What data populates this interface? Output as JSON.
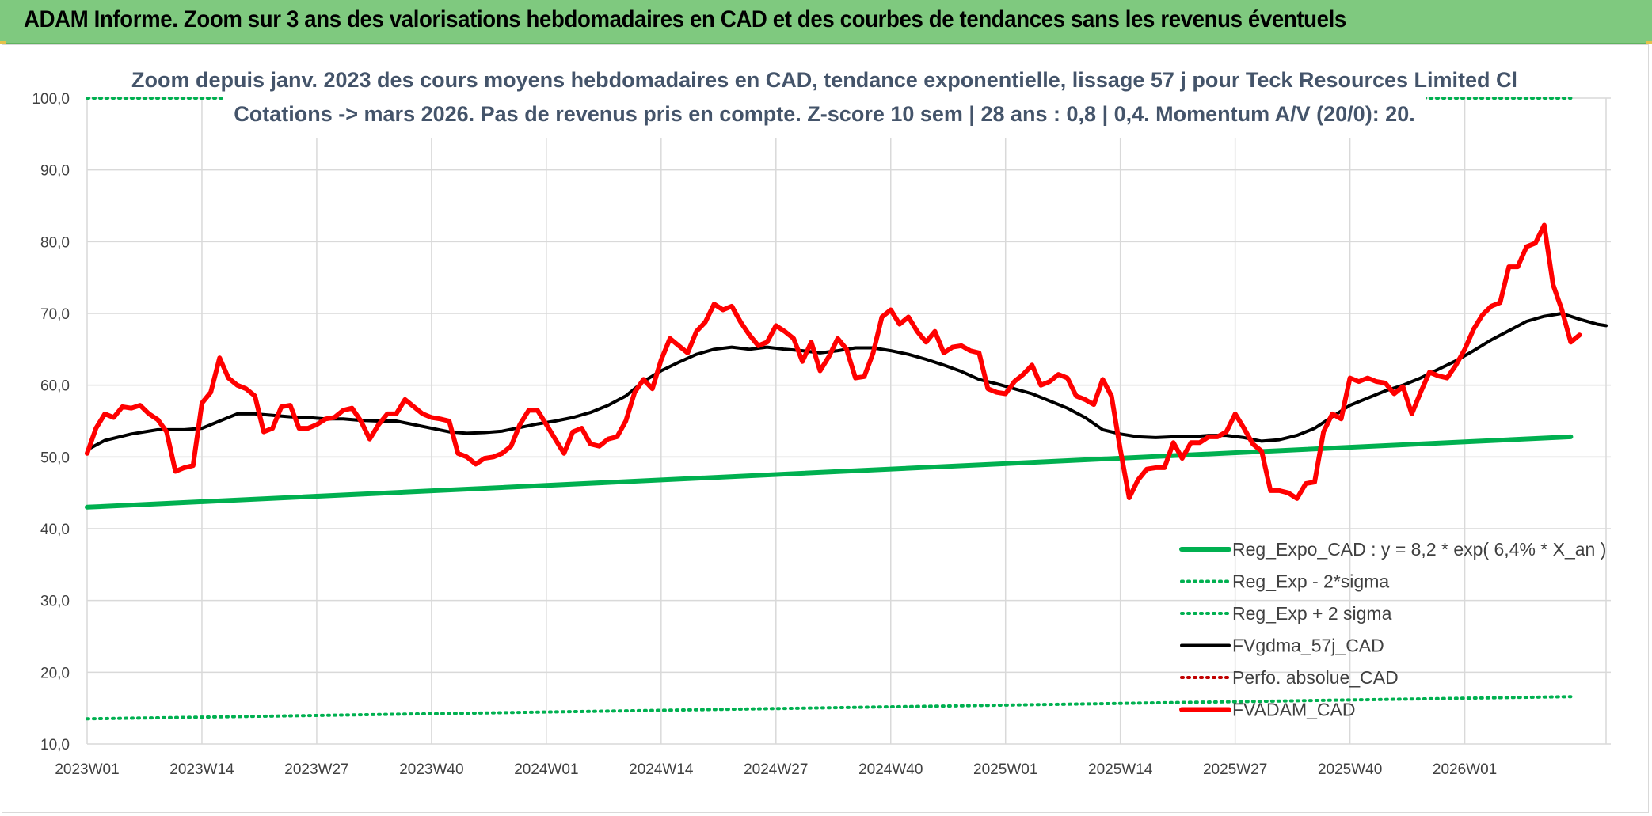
{
  "header": {
    "title": "ADAM Informe. Zoom sur 3 ans des valorisations hebdomadaires en CAD et des courbes de tendances sans les revenus éventuels"
  },
  "chart_data": {
    "type": "line",
    "title_lines": [
      "Zoom depuis janv. 2023 des cours moyens hebdomadaires en CAD, tendance exponentielle, lissage 57 j pour Teck Resources Limited Cl",
      "Cotations -> mars 2026. Pas de revenus pris en compte. Z-score 10 sem | 28 ans : 0,8 | 0,4. Momentum A/V (20/0): 20."
    ],
    "ylim": [
      10,
      100
    ],
    "y_ticks": [
      "10,0",
      "20,0",
      "30,0",
      "40,0",
      "50,0",
      "60,0",
      "70,0",
      "80,0",
      "90,0",
      "100,0"
    ],
    "x_ticks": [
      "2023W01",
      "2023W14",
      "2023W27",
      "2023W40",
      "2024W01",
      "2024W14",
      "2024W27",
      "2024W40",
      "2025W01",
      "2025W14",
      "2025W27",
      "2025W40",
      "2026W01"
    ],
    "grid": true,
    "legend_position": "bottom-right",
    "colors": {
      "reg_expo": "#00b050",
      "reg_minus": "#00b050",
      "reg_plus": "#00b050",
      "gdma": "#000000",
      "perfo": "#c00000",
      "adam": "#ff0000"
    },
    "series": [
      {
        "name": "Reg_Expo_CAD : y = 8,2 * exp( 6,4% *  X_an )",
        "key": "reg_expo",
        "style": "solid-thick",
        "points": [
          [
            0,
            43.0
          ],
          [
            168,
            52.8
          ]
        ]
      },
      {
        "name": "Reg_Exp - 2*sigma",
        "key": "reg_minus",
        "style": "dotted",
        "points": [
          [
            0,
            13.5
          ],
          [
            168,
            16.6
          ]
        ]
      },
      {
        "name": "Reg_Exp + 2 sigma",
        "key": "reg_plus",
        "style": "dotted",
        "points": [
          [
            0,
            100.0
          ],
          [
            168,
            100.0
          ]
        ]
      },
      {
        "name": "FVgdma_57j_CAD",
        "key": "gdma",
        "style": "solid",
        "points": [
          [
            0,
            51
          ],
          [
            2,
            52.3
          ],
          [
            5,
            53.2
          ],
          [
            8,
            53.8
          ],
          [
            11,
            53.8
          ],
          [
            13,
            54.0
          ],
          [
            15,
            55.0
          ],
          [
            17,
            56.0
          ],
          [
            19,
            56.0
          ],
          [
            21,
            55.8
          ],
          [
            23,
            55.6
          ],
          [
            25,
            55.5
          ],
          [
            27,
            55.3
          ],
          [
            29,
            55.3
          ],
          [
            31,
            55.1
          ],
          [
            33,
            55.0
          ],
          [
            35,
            55.0
          ],
          [
            37,
            54.5
          ],
          [
            39,
            54.0
          ],
          [
            41,
            53.5
          ],
          [
            43,
            53.3
          ],
          [
            45,
            53.4
          ],
          [
            47,
            53.6
          ],
          [
            49,
            54.1
          ],
          [
            51,
            54.6
          ],
          [
            53,
            55.0
          ],
          [
            55,
            55.5
          ],
          [
            57,
            56.2
          ],
          [
            59,
            57.2
          ],
          [
            61,
            58.5
          ],
          [
            63,
            60.5
          ],
          [
            65,
            62.0
          ],
          [
            67,
            63.2
          ],
          [
            69,
            64.3
          ],
          [
            71,
            65.0
          ],
          [
            73,
            65.3
          ],
          [
            75,
            65.0
          ],
          [
            77,
            65.3
          ],
          [
            79,
            65.0
          ],
          [
            81,
            64.8
          ],
          [
            83,
            64.5
          ],
          [
            85,
            64.8
          ],
          [
            87,
            65.2
          ],
          [
            89,
            65.2
          ],
          [
            91,
            64.8
          ],
          [
            93,
            64.3
          ],
          [
            95,
            63.6
          ],
          [
            97,
            62.8
          ],
          [
            99,
            61.9
          ],
          [
            101,
            60.8
          ],
          [
            103,
            60.2
          ],
          [
            105,
            59.5
          ],
          [
            107,
            58.8
          ],
          [
            109,
            57.8
          ],
          [
            111,
            56.8
          ],
          [
            113,
            55.5
          ],
          [
            115,
            53.8
          ],
          [
            117,
            53.2
          ],
          [
            119,
            52.8
          ],
          [
            121,
            52.7
          ],
          [
            123,
            52.8
          ],
          [
            125,
            52.8
          ],
          [
            127,
            53.0
          ],
          [
            129,
            53.0
          ],
          [
            131,
            52.7
          ],
          [
            133,
            52.2
          ],
          [
            135,
            52.4
          ],
          [
            137,
            53.0
          ],
          [
            139,
            54.0
          ],
          [
            141,
            55.6
          ],
          [
            143,
            57.2
          ],
          [
            145,
            58.2
          ],
          [
            147,
            59.2
          ],
          [
            149,
            60.0
          ],
          [
            151,
            61.0
          ],
          [
            153,
            62.2
          ],
          [
            155,
            63.4
          ],
          [
            157,
            64.8
          ],
          [
            159,
            66.3
          ],
          [
            161,
            67.6
          ],
          [
            163,
            68.9
          ],
          [
            165,
            69.6
          ],
          [
            167,
            70.0
          ],
          [
            169,
            69.2
          ],
          [
            171,
            68.5
          ],
          [
            172,
            68.3
          ]
        ]
      },
      {
        "name": "Perfo. absolue_CAD",
        "key": "perfo",
        "style": "dotted",
        "points": []
      },
      {
        "name": "FVADAM_CAD",
        "key": "adam",
        "style": "solid-thick",
        "points": [
          [
            0,
            50.5
          ],
          [
            1,
            54.0
          ],
          [
            2,
            56.0
          ],
          [
            3,
            55.5
          ],
          [
            4,
            57.0
          ],
          [
            5,
            56.8
          ],
          [
            6,
            57.2
          ],
          [
            7,
            56.0
          ],
          [
            8,
            55.2
          ],
          [
            9,
            53.5
          ],
          [
            10,
            48.0
          ],
          [
            11,
            48.5
          ],
          [
            12,
            48.8
          ],
          [
            13,
            57.5
          ],
          [
            14,
            59.0
          ],
          [
            15,
            63.8
          ],
          [
            16,
            61.0
          ],
          [
            17,
            60.0
          ],
          [
            18,
            59.5
          ],
          [
            19,
            58.5
          ],
          [
            20,
            53.5
          ],
          [
            21,
            54.0
          ],
          [
            22,
            57.0
          ],
          [
            23,
            57.2
          ],
          [
            24,
            54.0
          ],
          [
            25,
            54.0
          ],
          [
            26,
            54.5
          ],
          [
            27,
            55.3
          ],
          [
            28,
            55.5
          ],
          [
            29,
            56.5
          ],
          [
            30,
            56.8
          ],
          [
            31,
            55.0
          ],
          [
            32,
            52.5
          ],
          [
            33,
            54.5
          ],
          [
            34,
            56.0
          ],
          [
            35,
            56.0
          ],
          [
            36,
            58.0
          ],
          [
            37,
            57.0
          ],
          [
            38,
            56.0
          ],
          [
            39,
            55.5
          ],
          [
            40,
            55.3
          ],
          [
            41,
            55.0
          ],
          [
            42,
            50.5
          ],
          [
            43,
            50.0
          ],
          [
            44,
            49.0
          ],
          [
            45,
            49.8
          ],
          [
            46,
            50.0
          ],
          [
            47,
            50.5
          ],
          [
            48,
            51.5
          ],
          [
            49,
            54.5
          ],
          [
            50,
            56.5
          ],
          [
            51,
            56.5
          ],
          [
            52,
            54.5
          ],
          [
            53,
            52.5
          ],
          [
            54,
            50.5
          ],
          [
            55,
            53.5
          ],
          [
            56,
            54.0
          ],
          [
            57,
            51.8
          ],
          [
            58,
            51.5
          ],
          [
            59,
            52.5
          ],
          [
            60,
            52.8
          ],
          [
            61,
            55.0
          ],
          [
            62,
            59.0
          ],
          [
            63,
            60.8
          ],
          [
            64,
            59.5
          ],
          [
            65,
            63.5
          ],
          [
            66,
            66.5
          ],
          [
            67,
            65.5
          ],
          [
            68,
            64.5
          ],
          [
            69,
            67.5
          ],
          [
            70,
            68.8
          ],
          [
            71,
            71.3
          ],
          [
            72,
            70.5
          ],
          [
            73,
            71.0
          ],
          [
            74,
            68.8
          ],
          [
            75,
            67.0
          ],
          [
            76,
            65.5
          ],
          [
            77,
            66.0
          ],
          [
            78,
            68.3
          ],
          [
            79,
            67.5
          ],
          [
            80,
            66.5
          ],
          [
            81,
            63.3
          ],
          [
            82,
            66.0
          ],
          [
            83,
            62.0
          ],
          [
            84,
            64.0
          ],
          [
            85,
            66.5
          ],
          [
            86,
            65.0
          ],
          [
            87,
            61.0
          ],
          [
            88,
            61.2
          ],
          [
            89,
            64.5
          ],
          [
            90,
            69.5
          ],
          [
            91,
            70.5
          ],
          [
            92,
            68.5
          ],
          [
            93,
            69.5
          ],
          [
            94,
            67.5
          ],
          [
            95,
            66.0
          ],
          [
            96,
            67.5
          ],
          [
            97,
            64.5
          ],
          [
            98,
            65.3
          ],
          [
            99,
            65.5
          ],
          [
            100,
            64.8
          ],
          [
            101,
            64.5
          ],
          [
            102,
            59.5
          ],
          [
            103,
            59.0
          ],
          [
            104,
            58.8
          ],
          [
            105,
            60.5
          ],
          [
            106,
            61.5
          ],
          [
            107,
            62.8
          ],
          [
            108,
            60.0
          ],
          [
            109,
            60.5
          ],
          [
            110,
            61.5
          ],
          [
            111,
            61.0
          ],
          [
            112,
            58.5
          ],
          [
            113,
            58.0
          ],
          [
            114,
            57.3
          ],
          [
            115,
            60.8
          ],
          [
            116,
            58.5
          ],
          [
            117,
            51.0
          ],
          [
            118,
            44.3
          ],
          [
            119,
            46.8
          ],
          [
            120,
            48.3
          ],
          [
            121,
            48.5
          ],
          [
            122,
            48.5
          ],
          [
            123,
            52.0
          ],
          [
            124,
            49.8
          ],
          [
            125,
            52.0
          ],
          [
            126,
            52.0
          ],
          [
            127,
            52.8
          ],
          [
            128,
            52.8
          ],
          [
            129,
            53.5
          ],
          [
            130,
            56.0
          ],
          [
            131,
            54.0
          ],
          [
            132,
            51.8
          ],
          [
            133,
            50.8
          ],
          [
            134,
            45.3
          ],
          [
            135,
            45.3
          ],
          [
            136,
            45.0
          ],
          [
            137,
            44.2
          ],
          [
            138,
            46.3
          ],
          [
            139,
            46.5
          ],
          [
            140,
            53.5
          ],
          [
            141,
            56.0
          ],
          [
            142,
            55.3
          ],
          [
            143,
            61.0
          ],
          [
            144,
            60.5
          ],
          [
            145,
            61.0
          ],
          [
            146,
            60.5
          ],
          [
            147,
            60.3
          ],
          [
            148,
            58.8
          ],
          [
            149,
            59.8
          ],
          [
            150,
            56.0
          ],
          [
            151,
            59.0
          ],
          [
            152,
            61.8
          ],
          [
            153,
            61.3
          ],
          [
            154,
            61.0
          ],
          [
            155,
            62.8
          ],
          [
            156,
            65.0
          ],
          [
            157,
            67.8
          ],
          [
            158,
            69.8
          ],
          [
            159,
            71.0
          ],
          [
            160,
            71.5
          ],
          [
            161,
            76.5
          ],
          [
            162,
            76.5
          ],
          [
            163,
            79.3
          ],
          [
            164,
            79.8
          ],
          [
            165,
            82.3
          ],
          [
            166,
            74.0
          ],
          [
            167,
            70.5
          ],
          [
            168,
            66.0
          ],
          [
            169,
            67.0
          ]
        ]
      }
    ]
  }
}
